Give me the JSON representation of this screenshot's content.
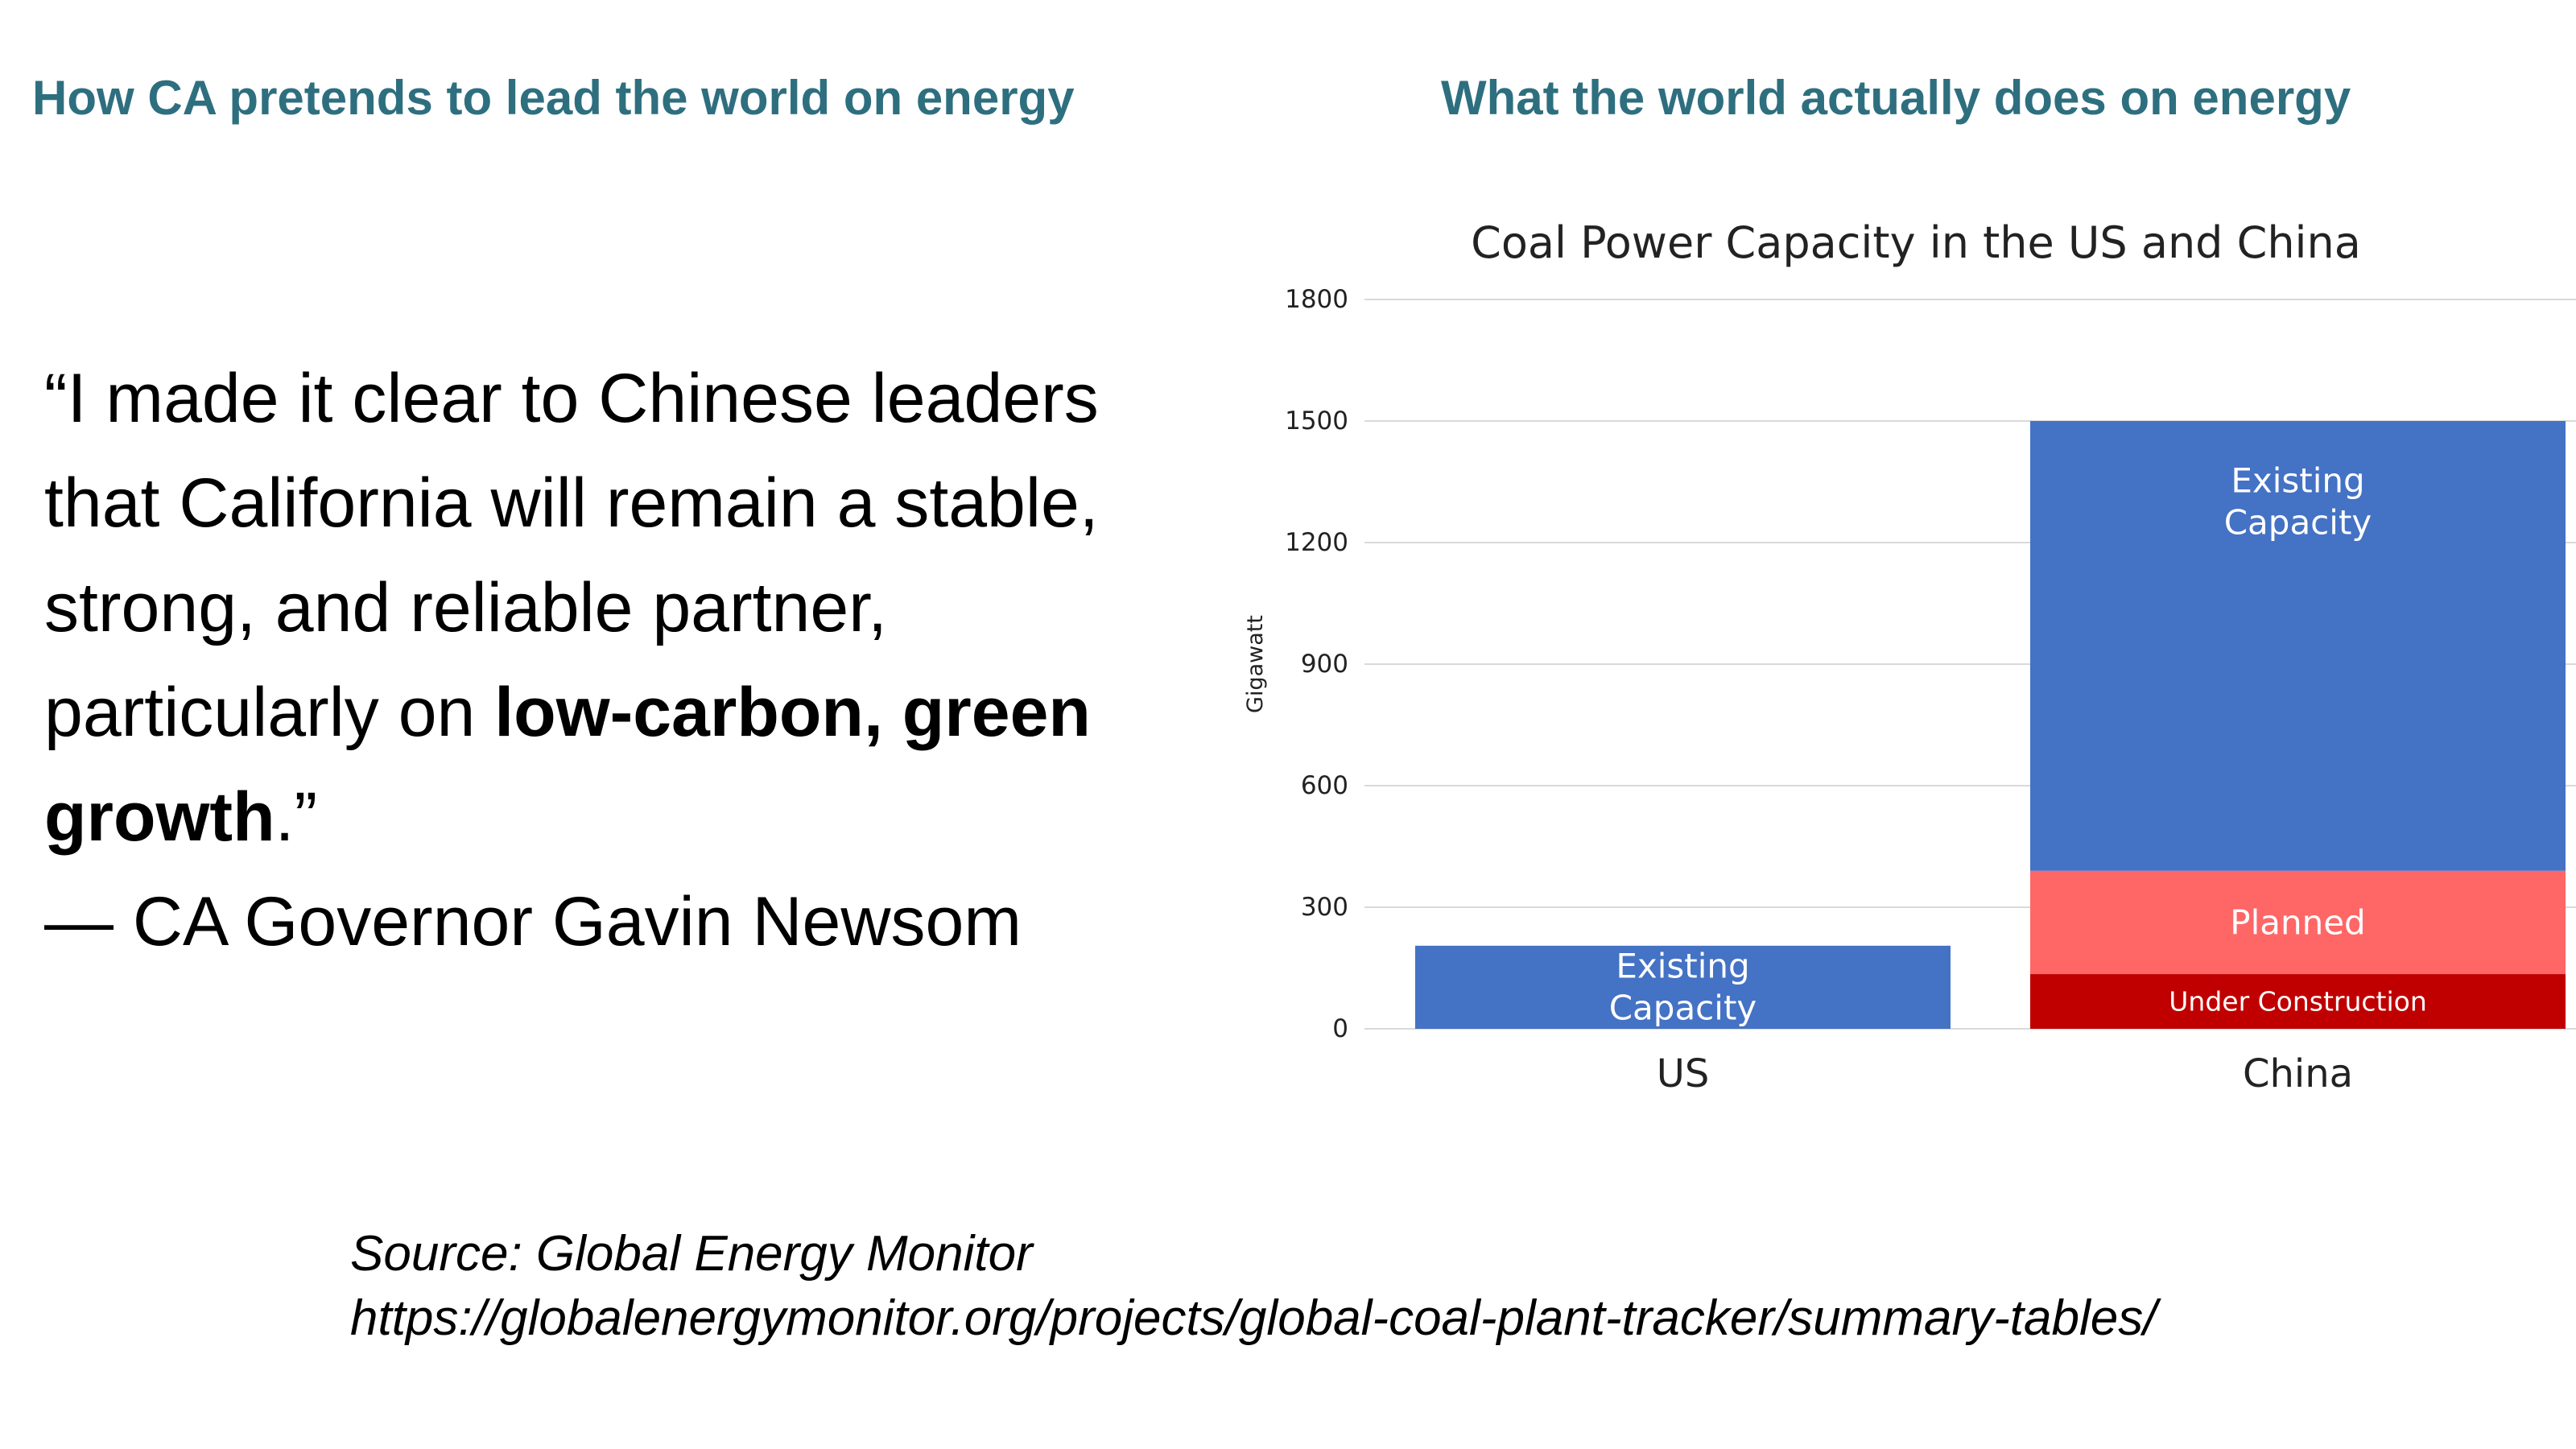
{
  "headings": {
    "left": "How CA pretends to lead the world on energy",
    "right": "What the world actually does on energy"
  },
  "quote": {
    "line1": "“I made it clear to Chinese leaders",
    "line2": "that California will remain a stable,",
    "line3": "strong, and reliable partner,",
    "line4_pre": "particularly on ",
    "line4_bold": "low-carbon, green",
    "line5_bold": "growth",
    "line5_post": ".”",
    "attribution": "— CA Governor Gavin Newsom"
  },
  "source": {
    "label": "Source: Global Energy Monitor",
    "url": "https://globalenergymonitor.org/projects/global-coal-plant-tracker/summary-tables/"
  },
  "colors": {
    "heading": "#2e6f7f",
    "existing_capacity": "#4472c4",
    "planned": "#ff6666",
    "under_construction": "#c00000",
    "gridline": "#d9d9d9"
  },
  "chart_data": {
    "type": "bar",
    "stacked": true,
    "title": "Coal Power Capacity in the US and China",
    "ylabel": "Gigawatt",
    "xlabel": "",
    "ylim": [
      0,
      1800
    ],
    "yticks": [
      0,
      300,
      600,
      900,
      1200,
      1500,
      1800
    ],
    "grid": true,
    "categories": [
      "US",
      "China"
    ],
    "series": [
      {
        "name": "Under Construction",
        "values": [
          0,
          135
        ],
        "color": "#c00000",
        "labels": [
          "",
          "Under Construction"
        ]
      },
      {
        "name": "Planned",
        "values": [
          0,
          255
        ],
        "color": "#ff6666",
        "labels": [
          "",
          "Planned"
        ]
      },
      {
        "name": "Existing Capacity",
        "values": [
          205,
          1110
        ],
        "color": "#4472c4",
        "labels": [
          "Existing Capacity",
          "Existing Capacity"
        ]
      }
    ]
  }
}
